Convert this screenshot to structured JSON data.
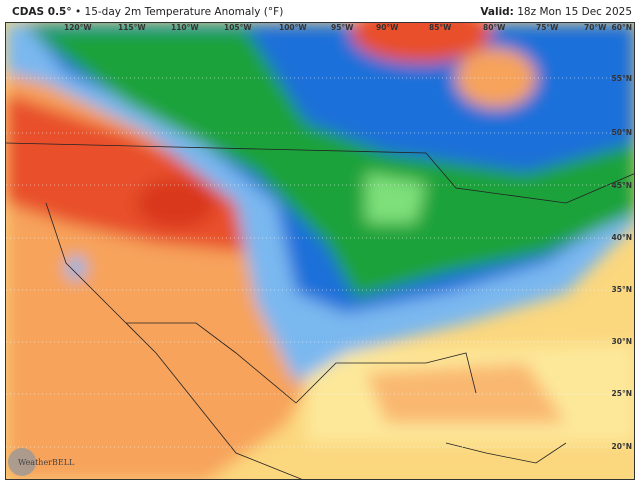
{
  "header": {
    "model": "CDAS 0.5°",
    "separator": "•",
    "product": "15-day 2m Temperature Anomaly (°F)",
    "valid_label": "Valid:",
    "valid_time": "18z Mon 15 Dec 2025"
  },
  "map": {
    "longitude_labels": [
      "120°W",
      "115°W",
      "110°W",
      "105°W",
      "100°W",
      "95°W",
      "90°W",
      "85°W",
      "80°W",
      "75°W",
      "70°W"
    ],
    "latitude_labels": [
      "60°N",
      "55°N",
      "50°N",
      "45°N",
      "40°N",
      "35°N",
      "30°N",
      "25°N",
      "20°N"
    ],
    "colors": {
      "warm": "#e8502a",
      "mild": "#f7a35c",
      "slight_warm": "#fde89a",
      "cold": "#1e6fd9",
      "cool": "#7ab8f0",
      "very_cold": "#1aa23a",
      "frigid": "#7ee07a"
    }
  },
  "branding": {
    "logo": "WeatherBELL"
  }
}
